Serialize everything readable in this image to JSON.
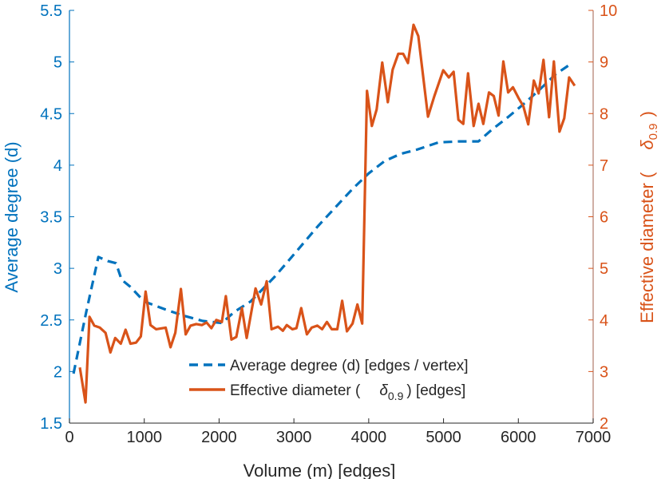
{
  "chart_data": {
    "type": "line",
    "xlabel": "Volume (m) [edges]",
    "ylabel_left": "Average degree (d)",
    "ylabel_right": "Effective diameter ( δ0.9 )",
    "xlim": [
      0,
      7000
    ],
    "ylim_left": [
      1.5,
      5.5
    ],
    "ylim_right": [
      2,
      10
    ],
    "xticks": [
      "0",
      "1000",
      "2000",
      "3000",
      "4000",
      "5000",
      "6000",
      "7000"
    ],
    "yticks_left": [
      "1.5",
      "2",
      "2.5",
      "3",
      "3.5",
      "4",
      "4.5",
      "5",
      "5.5"
    ],
    "yticks_right": [
      "2",
      "3",
      "4",
      "5",
      "6",
      "7",
      "8",
      "9",
      "10"
    ],
    "legend_position": "bottom-center",
    "colors": {
      "left": "#0072BD",
      "right": "#D95319"
    },
    "series": [
      {
        "name": "Average degree (d) [edges / vertex]",
        "axis": "left",
        "style": "dashed",
        "x": [
          54,
          225,
          386,
          515,
          622,
          697,
          815,
          997,
          1286,
          1533,
          1780,
          2037,
          2208,
          2423,
          2744,
          2959,
          3323,
          3784,
          3999,
          4213,
          4427,
          4642,
          4931,
          5210,
          5468,
          5639,
          5853,
          6067,
          6282,
          6496,
          6679
        ],
        "y": [
          1.98,
          2.58,
          3.11,
          3.07,
          3.05,
          2.89,
          2.82,
          2.68,
          2.6,
          2.54,
          2.49,
          2.47,
          2.58,
          2.68,
          2.92,
          3.1,
          3.41,
          3.77,
          3.92,
          4.04,
          4.11,
          4.15,
          4.22,
          4.23,
          4.23,
          4.34,
          4.46,
          4.59,
          4.73,
          4.88,
          4.97
        ]
      },
      {
        "name": "Effective diameter ( δ0.9 ) [edges]",
        "axis": "right",
        "style": "solid",
        "x": [
          139,
          214,
          268,
          332,
          407,
          482,
          547,
          611,
          686,
          750,
          815,
          890,
          954,
          1018,
          1083,
          1158,
          1286,
          1351,
          1415,
          1490,
          1554,
          1619,
          1694,
          1769,
          1833,
          1897,
          1962,
          2037,
          2090,
          2165,
          2230,
          2305,
          2369,
          2487,
          2562,
          2637,
          2701,
          2787,
          2852,
          2905,
          2980,
          3034,
          3098,
          3173,
          3237,
          3313,
          3377,
          3441,
          3505,
          3580,
          3645,
          3709,
          3784,
          3849,
          3913,
          3977,
          4042,
          4106,
          4181,
          4256,
          4320,
          4395,
          4460,
          4524,
          4599,
          4663,
          4792,
          4878,
          4996,
          5071,
          5135,
          5199,
          5264,
          5328,
          5403,
          5468,
          5532,
          5607,
          5671,
          5735,
          5800,
          5864,
          5928,
          6003,
          6067,
          6132,
          6207,
          6271,
          6336,
          6411,
          6475,
          6550,
          6614,
          6679,
          6754
        ],
        "y": [
          3.08,
          2.4,
          4.06,
          3.89,
          3.85,
          3.75,
          3.37,
          3.65,
          3.54,
          3.81,
          3.54,
          3.56,
          3.68,
          4.55,
          3.9,
          3.82,
          3.85,
          3.47,
          3.75,
          4.6,
          3.72,
          3.89,
          3.92,
          3.9,
          3.95,
          3.84,
          4.0,
          3.96,
          4.46,
          3.62,
          3.67,
          4.23,
          3.65,
          4.61,
          4.3,
          4.75,
          3.82,
          3.87,
          3.79,
          3.9,
          3.82,
          3.84,
          4.23,
          3.72,
          3.85,
          3.89,
          3.82,
          3.96,
          3.82,
          3.82,
          4.37,
          3.78,
          3.93,
          4.3,
          3.93,
          8.44,
          7.76,
          8.08,
          8.99,
          8.22,
          8.85,
          9.16,
          9.16,
          8.98,
          9.72,
          9.5,
          7.94,
          8.34,
          8.84,
          8.7,
          8.81,
          7.88,
          7.8,
          8.78,
          7.76,
          8.19,
          7.8,
          8.41,
          8.34,
          7.96,
          9.01,
          8.41,
          8.51,
          8.3,
          8.14,
          7.79,
          8.64,
          8.39,
          9.04,
          7.93,
          9.01,
          7.65,
          7.91,
          8.7,
          8.54
        ]
      }
    ],
    "legend": {
      "entry1": "Average degree (d) [edges / vertex]",
      "entry2_pre": "Effective diameter (",
      "entry2_sym": "δ",
      "entry2_sub": "0.9",
      "entry2_post": ") [edges]"
    },
    "right_label": {
      "pre": "Effective diameter (",
      "sym": "δ",
      "sub": "0.9",
      "post": ")"
    }
  }
}
